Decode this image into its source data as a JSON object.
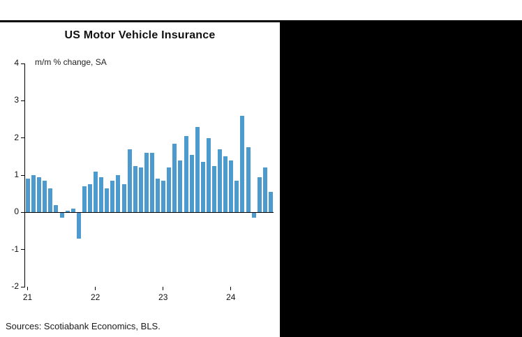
{
  "page": {
    "sources": "Sources: Scotiabank Economics, BLS."
  },
  "chart_data": {
    "type": "bar",
    "title": "US Motor Vehicle Insurance",
    "subtitle": "m/m % change, SA",
    "xlabel": "",
    "ylabel": "m/m % change, SA",
    "ylim": [
      -2,
      4
    ],
    "yticks": [
      4,
      3,
      2,
      1,
      0,
      -1,
      -2
    ],
    "grid": false,
    "legend": "none",
    "bar_color": "#4D9BCE",
    "x": [
      "2021-01",
      "2021-02",
      "2021-03",
      "2021-04",
      "2021-05",
      "2021-06",
      "2021-07",
      "2021-08",
      "2021-09",
      "2021-10",
      "2021-11",
      "2021-12",
      "2022-01",
      "2022-02",
      "2022-03",
      "2022-04",
      "2022-05",
      "2022-06",
      "2022-07",
      "2022-08",
      "2022-09",
      "2022-10",
      "2022-11",
      "2022-12",
      "2023-01",
      "2023-02",
      "2023-03",
      "2023-04",
      "2023-05",
      "2023-06",
      "2023-07",
      "2023-08",
      "2023-09",
      "2023-10",
      "2023-11",
      "2023-12",
      "2024-01",
      "2024-02",
      "2024-03",
      "2024-04",
      "2024-05",
      "2024-06",
      "2024-07",
      "2024-08"
    ],
    "values": [
      0.9,
      1.0,
      0.95,
      0.85,
      0.65,
      0.2,
      -0.15,
      0.05,
      0.1,
      -0.7,
      0.7,
      0.75,
      1.1,
      0.95,
      0.65,
      0.85,
      1.0,
      0.75,
      1.7,
      1.25,
      1.2,
      1.6,
      1.6,
      0.9,
      0.85,
      1.2,
      1.85,
      1.4,
      2.05,
      1.55,
      2.3,
      1.35,
      2.0,
      1.25,
      1.7,
      1.5,
      1.4,
      0.85,
      2.6,
      1.75,
      -0.15,
      0.95,
      1.2,
      0.55
    ],
    "xticks": [
      {
        "label": "21",
        "index": 0
      },
      {
        "label": "22",
        "index": 12
      },
      {
        "label": "23",
        "index": 24
      },
      {
        "label": "24",
        "index": 36
      }
    ]
  }
}
